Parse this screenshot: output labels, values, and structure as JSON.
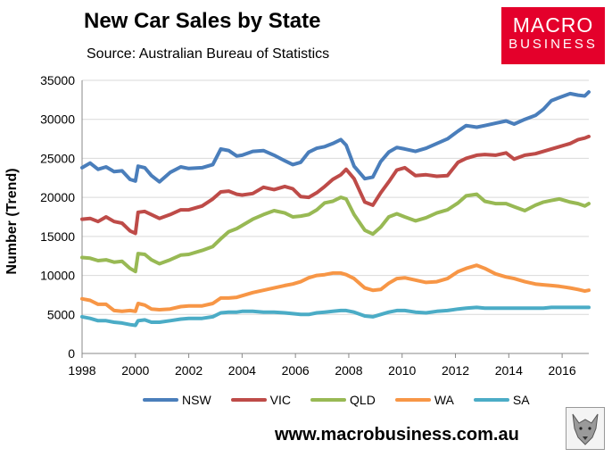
{
  "header": {
    "title": "New Car Sales by State",
    "subtitle": "Source: Australian Bureau of Statistics"
  },
  "logo": {
    "line1": "MACRO",
    "line2": "BUSINESS",
    "color": "#e4002b"
  },
  "footer": {
    "url": "www.macrobusiness.com.au"
  },
  "chart_data": {
    "type": "line",
    "title": "New Car Sales by State",
    "xlabel": "",
    "ylabel": "Number (Trend)",
    "xlim": [
      1998,
      2017
    ],
    "ylim": [
      0,
      35000
    ],
    "xticks": [
      "1998",
      "2000",
      "2002",
      "2004",
      "2006",
      "2008",
      "2010",
      "2012",
      "2014",
      "2016"
    ],
    "yticks": [
      "0",
      "5000",
      "10000",
      "15000",
      "20000",
      "25000",
      "30000",
      "35000"
    ],
    "grid": true,
    "legend_position": "bottom",
    "series": [
      {
        "name": "NSW",
        "color": "#4a7ebb",
        "x": [
          1998,
          1998.3,
          1998.6,
          1998.9,
          1999.2,
          1999.5,
          1999.8,
          2000.0,
          2000.1,
          2000.35,
          2000.6,
          2000.9,
          2001.3,
          2001.7,
          2002.0,
          2002.5,
          2002.9,
          2003.2,
          2003.5,
          2003.8,
          2004.0,
          2004.4,
          2004.8,
          2005.2,
          2005.6,
          2005.9,
          2006.2,
          2006.5,
          2006.8,
          2007.1,
          2007.4,
          2007.7,
          2007.9,
          2008.2,
          2008.6,
          2008.9,
          2009.2,
          2009.5,
          2009.8,
          2010.1,
          2010.5,
          2010.9,
          2011.3,
          2011.7,
          2012.1,
          2012.4,
          2012.8,
          2013.1,
          2013.5,
          2013.9,
          2014.2,
          2014.6,
          2015.0,
          2015.3,
          2015.6,
          2015.9,
          2016.3,
          2016.6,
          2016.85,
          2017.0
        ],
        "y": [
          23800,
          24400,
          23600,
          23900,
          23300,
          23400,
          22300,
          22100,
          24000,
          23800,
          22800,
          22000,
          23200,
          23900,
          23700,
          23800,
          24200,
          26200,
          26000,
          25300,
          25400,
          25900,
          26000,
          25400,
          24700,
          24200,
          24500,
          25800,
          26300,
          26500,
          26900,
          27400,
          26700,
          24000,
          22400,
          22600,
          24600,
          25800,
          26400,
          26200,
          25900,
          26300,
          26900,
          27500,
          28500,
          29200,
          29000,
          29200,
          29500,
          29800,
          29400,
          30000,
          30500,
          31300,
          32400,
          32800,
          33300,
          33100,
          33000,
          33500
        ]
      },
      {
        "name": "VIC",
        "color": "#be4b48",
        "x": [
          1998,
          1998.3,
          1998.6,
          1998.9,
          1999.2,
          1999.5,
          1999.8,
          2000.0,
          2000.1,
          2000.35,
          2000.6,
          2000.9,
          2001.3,
          2001.7,
          2002.0,
          2002.5,
          2002.9,
          2003.2,
          2003.5,
          2003.8,
          2004.0,
          2004.4,
          2004.8,
          2005.2,
          2005.6,
          2005.9,
          2006.2,
          2006.5,
          2006.8,
          2007.1,
          2007.4,
          2007.7,
          2007.9,
          2008.2,
          2008.6,
          2008.9,
          2009.2,
          2009.5,
          2009.8,
          2010.1,
          2010.5,
          2010.9,
          2011.3,
          2011.7,
          2012.1,
          2012.4,
          2012.8,
          2013.1,
          2013.5,
          2013.9,
          2014.2,
          2014.6,
          2015.0,
          2015.3,
          2015.6,
          2015.9,
          2016.3,
          2016.6,
          2016.85,
          2017.0
        ],
        "y": [
          17200,
          17300,
          16900,
          17500,
          16900,
          16700,
          15700,
          15400,
          18100,
          18200,
          17800,
          17300,
          17800,
          18400,
          18400,
          18900,
          19800,
          20700,
          20800,
          20400,
          20300,
          20500,
          21300,
          21000,
          21400,
          21100,
          20100,
          20000,
          20600,
          21400,
          22300,
          22900,
          23600,
          22400,
          19400,
          19000,
          20600,
          22000,
          23500,
          23800,
          22800,
          22900,
          22700,
          22800,
          24500,
          25000,
          25400,
          25500,
          25400,
          25700,
          24900,
          25400,
          25600,
          25900,
          26200,
          26500,
          26900,
          27400,
          27600,
          27800
        ]
      },
      {
        "name": "QLD",
        "color": "#98b954",
        "x": [
          1998,
          1998.3,
          1998.6,
          1998.9,
          1999.2,
          1999.5,
          1999.8,
          2000.0,
          2000.1,
          2000.35,
          2000.6,
          2000.9,
          2001.3,
          2001.7,
          2002.0,
          2002.5,
          2002.9,
          2003.2,
          2003.5,
          2003.8,
          2004.0,
          2004.4,
          2004.8,
          2005.2,
          2005.6,
          2005.9,
          2006.2,
          2006.5,
          2006.8,
          2007.1,
          2007.4,
          2007.7,
          2007.9,
          2008.2,
          2008.6,
          2008.9,
          2009.2,
          2009.5,
          2009.8,
          2010.1,
          2010.5,
          2010.9,
          2011.3,
          2011.7,
          2012.1,
          2012.4,
          2012.8,
          2013.1,
          2013.5,
          2013.9,
          2014.2,
          2014.6,
          2015.0,
          2015.3,
          2015.6,
          2015.9,
          2016.3,
          2016.6,
          2016.85,
          2017.0
        ],
        "y": [
          12300,
          12200,
          11900,
          12000,
          11700,
          11800,
          10900,
          10500,
          12800,
          12700,
          12000,
          11500,
          12000,
          12600,
          12700,
          13200,
          13700,
          14700,
          15600,
          16000,
          16400,
          17200,
          17800,
          18300,
          18000,
          17500,
          17600,
          17800,
          18400,
          19300,
          19500,
          20000,
          19800,
          17800,
          15800,
          15300,
          16200,
          17500,
          17900,
          17500,
          17000,
          17400,
          18000,
          18400,
          19300,
          20200,
          20400,
          19500,
          19200,
          19200,
          18800,
          18300,
          19000,
          19400,
          19600,
          19800,
          19400,
          19200,
          18900,
          19200
        ]
      },
      {
        "name": "WA",
        "color": "#f79646",
        "x": [
          1998,
          1998.3,
          1998.6,
          1998.9,
          1999.2,
          1999.5,
          1999.8,
          2000.0,
          2000.1,
          2000.35,
          2000.6,
          2000.9,
          2001.3,
          2001.7,
          2002.0,
          2002.5,
          2002.9,
          2003.2,
          2003.5,
          2003.8,
          2004.0,
          2004.4,
          2004.8,
          2005.2,
          2005.6,
          2005.9,
          2006.2,
          2006.5,
          2006.8,
          2007.1,
          2007.4,
          2007.7,
          2007.9,
          2008.2,
          2008.6,
          2008.9,
          2009.2,
          2009.5,
          2009.8,
          2010.1,
          2010.5,
          2010.9,
          2011.3,
          2011.7,
          2012.1,
          2012.4,
          2012.8,
          2013.1,
          2013.5,
          2013.9,
          2014.2,
          2014.6,
          2015.0,
          2015.3,
          2015.6,
          2015.9,
          2016.3,
          2016.6,
          2016.85,
          2017.0
        ],
        "y": [
          7000,
          6800,
          6300,
          6300,
          5500,
          5400,
          5500,
          5400,
          6400,
          6200,
          5700,
          5600,
          5700,
          6000,
          6100,
          6100,
          6400,
          7100,
          7100,
          7200,
          7400,
          7800,
          8100,
          8400,
          8700,
          8900,
          9200,
          9700,
          10000,
          10100,
          10300,
          10300,
          10100,
          9600,
          8400,
          8100,
          8200,
          9000,
          9600,
          9700,
          9400,
          9100,
          9200,
          9600,
          10500,
          10900,
          11300,
          10900,
          10200,
          9800,
          9600,
          9200,
          8900,
          8800,
          8700,
          8600,
          8400,
          8200,
          8000,
          8100
        ]
      },
      {
        "name": "SA",
        "color": "#4bacc6",
        "x": [
          1998,
          1998.3,
          1998.6,
          1998.9,
          1999.2,
          1999.5,
          1999.8,
          2000.0,
          2000.1,
          2000.35,
          2000.6,
          2000.9,
          2001.3,
          2001.7,
          2002.0,
          2002.5,
          2002.9,
          2003.2,
          2003.5,
          2003.8,
          2004.0,
          2004.4,
          2004.8,
          2005.2,
          2005.6,
          2005.9,
          2006.2,
          2006.5,
          2006.8,
          2007.1,
          2007.4,
          2007.7,
          2007.9,
          2008.2,
          2008.6,
          2008.9,
          2009.2,
          2009.5,
          2009.8,
          2010.1,
          2010.5,
          2010.9,
          2011.3,
          2011.7,
          2012.1,
          2012.4,
          2012.8,
          2013.1,
          2013.5,
          2013.9,
          2014.2,
          2014.6,
          2015.0,
          2015.3,
          2015.6,
          2015.9,
          2016.3,
          2016.6,
          2016.85,
          2017.0
        ],
        "y": [
          4700,
          4500,
          4200,
          4200,
          4000,
          3900,
          3700,
          3600,
          4200,
          4300,
          4000,
          4000,
          4200,
          4400,
          4500,
          4500,
          4700,
          5200,
          5300,
          5300,
          5400,
          5400,
          5300,
          5300,
          5200,
          5100,
          5000,
          5000,
          5200,
          5300,
          5400,
          5500,
          5500,
          5300,
          4800,
          4700,
          5000,
          5300,
          5500,
          5500,
          5300,
          5200,
          5400,
          5500,
          5700,
          5800,
          5900,
          5800,
          5800,
          5800,
          5800,
          5800,
          5800,
          5800,
          5900,
          5900,
          5900,
          5900,
          5900,
          5900
        ]
      }
    ]
  }
}
